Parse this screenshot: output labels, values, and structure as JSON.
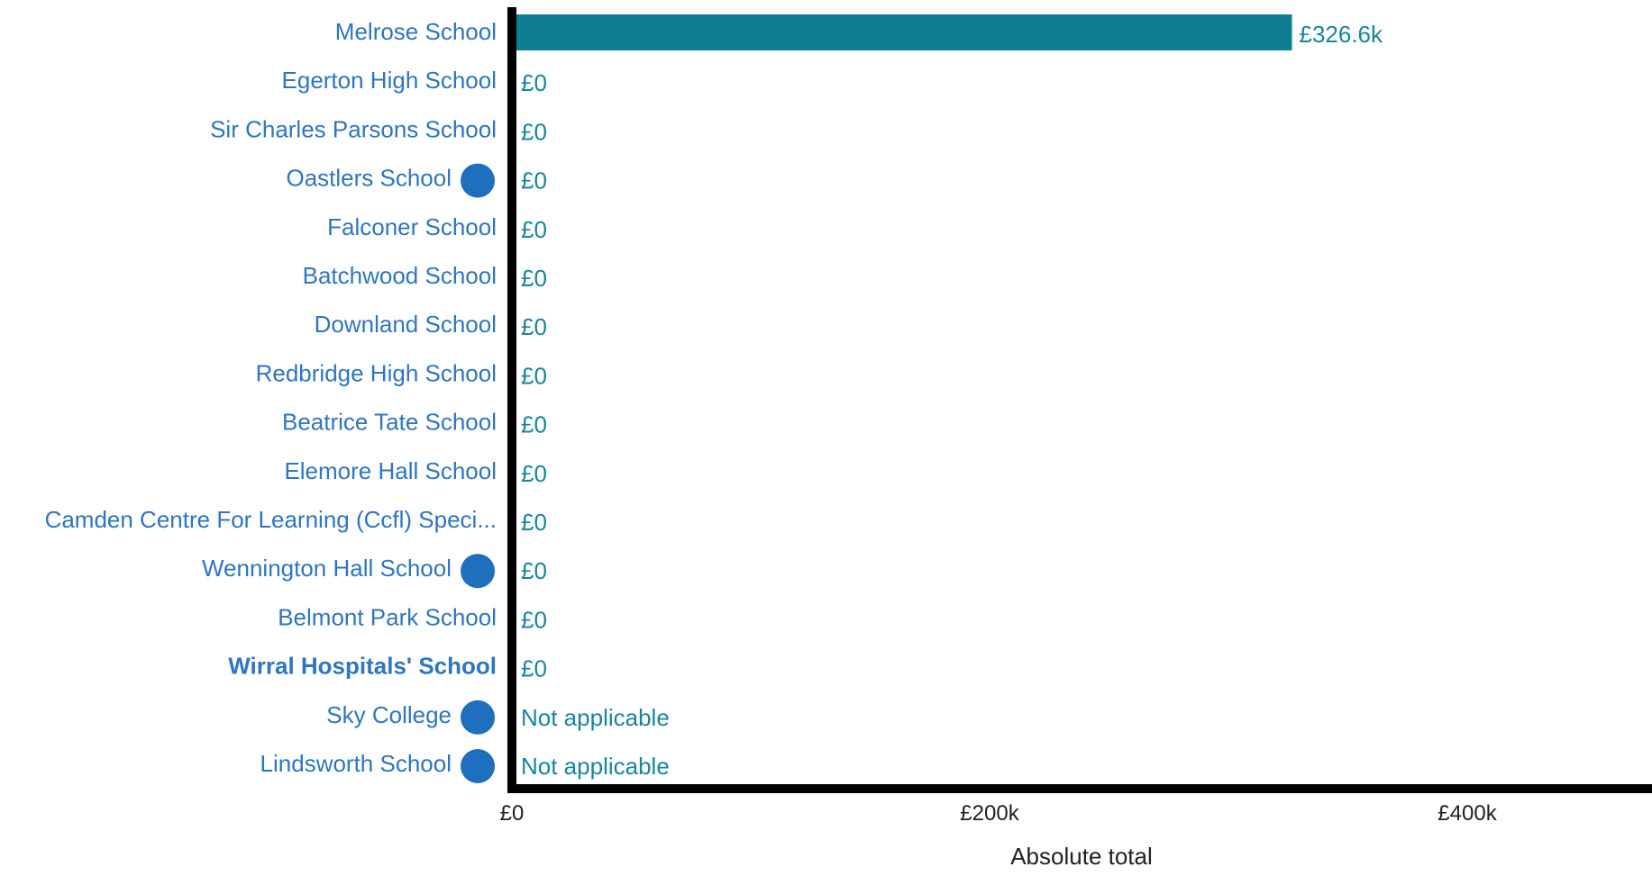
{
  "chart_data": {
    "type": "bar",
    "orientation": "horizontal",
    "xlabel": "Absolute total",
    "xlim": [
      0,
      480000
    ],
    "xticks": [
      {
        "value": 0,
        "label": "£0"
      },
      {
        "value": 200000,
        "label": "£200k"
      },
      {
        "value": 400000,
        "label": "£400k"
      }
    ],
    "bar_color": "#0e7f93",
    "label_color": "#2e75c2",
    "value_label_color": "#17869a",
    "marker_color": "#1e6fbe",
    "categories": [
      {
        "name": "Melrose School",
        "value": 326600,
        "display": "£326.6k",
        "bold": false,
        "marker": false
      },
      {
        "name": "Egerton High School",
        "value": 0,
        "display": "£0",
        "bold": false,
        "marker": false
      },
      {
        "name": "Sir Charles Parsons School",
        "value": 0,
        "display": "£0",
        "bold": false,
        "marker": false
      },
      {
        "name": "Oastlers School",
        "value": 0,
        "display": "£0",
        "bold": false,
        "marker": true
      },
      {
        "name": "Falconer School",
        "value": 0,
        "display": "£0",
        "bold": false,
        "marker": false
      },
      {
        "name": "Batchwood School",
        "value": 0,
        "display": "£0",
        "bold": false,
        "marker": false
      },
      {
        "name": "Downland School",
        "value": 0,
        "display": "£0",
        "bold": false,
        "marker": false
      },
      {
        "name": "Redbridge High School",
        "value": 0,
        "display": "£0",
        "bold": false,
        "marker": false
      },
      {
        "name": "Beatrice Tate School",
        "value": 0,
        "display": "£0",
        "bold": false,
        "marker": false
      },
      {
        "name": "Elemore Hall School",
        "value": 0,
        "display": "£0",
        "bold": false,
        "marker": false
      },
      {
        "name": "Camden Centre For Learning (Ccfl) Speci...",
        "value": 0,
        "display": "£0",
        "bold": false,
        "marker": false
      },
      {
        "name": "Wennington Hall School",
        "value": 0,
        "display": "£0",
        "bold": false,
        "marker": true
      },
      {
        "name": "Belmont Park School",
        "value": 0,
        "display": "£0",
        "bold": false,
        "marker": false
      },
      {
        "name": "Wirral Hospitals' School",
        "value": 0,
        "display": "£0",
        "bold": true,
        "marker": false
      },
      {
        "name": "Sky College",
        "value": null,
        "display": "Not applicable",
        "bold": false,
        "marker": true
      },
      {
        "name": "Lindsworth School",
        "value": null,
        "display": "Not applicable",
        "bold": false,
        "marker": true
      }
    ]
  }
}
